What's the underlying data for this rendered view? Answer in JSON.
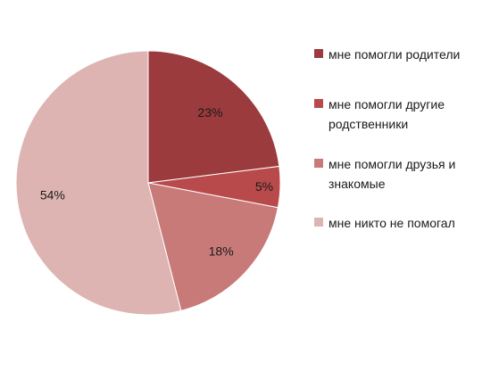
{
  "chart_data": {
    "type": "pie",
    "categories": [
      "мне помогли родители",
      "мне помогли другие родственники",
      "мне помогли друзья и знакомые",
      "мне никто не помогал"
    ],
    "values": [
      23,
      5,
      18,
      54
    ],
    "value_labels": [
      "23%",
      "5%",
      "18%",
      "54%"
    ],
    "colors": [
      "#9b3b3d",
      "#b94a4c",
      "#c87a79",
      "#ddb4b2"
    ],
    "legend_position": "right",
    "start_angle_deg": 0,
    "direction": "clockwise"
  },
  "legend": {
    "items": [
      {
        "label": "мне помогли родители"
      },
      {
        "label": "мне помогли другие родственники"
      },
      {
        "label": "мне помогли друзья и знакомые"
      },
      {
        "label": "мне никто не помогал"
      }
    ]
  }
}
